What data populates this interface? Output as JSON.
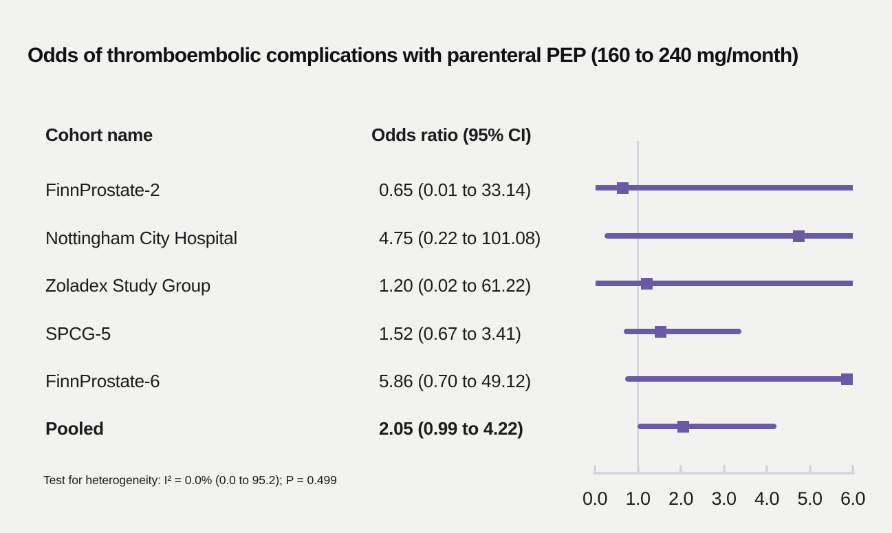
{
  "title": "Odds of thromboembolic complications with parenteral PEP (160 to 240 mg/month)",
  "columns": {
    "cohort": "Cohort name",
    "odds_ratio": "Odds ratio (95% CI)"
  },
  "footnote": "Test for heterogeneity: I² = 0.0% (0.0 to 95.2); P = 0.499",
  "colors": {
    "accent": "#6a5aa6",
    "axis": "#d3d8e0",
    "background": "#f2f2f1",
    "text": "#1b1b1b"
  },
  "chart_data": {
    "type": "forest",
    "title": "Odds of thromboembolic complications with parenteral PEP (160 to 240 mg/month)",
    "xlim": [
      0.0,
      6.0
    ],
    "reference_line": 1.0,
    "x_ticks": [
      0.0,
      1.0,
      2.0,
      3.0,
      4.0,
      5.0,
      6.0
    ],
    "x_tick_labels": [
      "0.0",
      "1.0",
      "2.0",
      "3.0",
      "4.0",
      "5.0",
      "6.0"
    ],
    "legend": "none",
    "grid": "off",
    "rows": [
      {
        "label": "FinnProstate-2",
        "or_text": "0.65 (0.01 to 33.14)",
        "or": 0.65,
        "ci_low": 0.01,
        "ci_high": 33.14,
        "bold": false
      },
      {
        "label": "Nottingham City Hospital",
        "or_text": "4.75 (0.22 to 101.08)",
        "or": 4.75,
        "ci_low": 0.22,
        "ci_high": 101.08,
        "bold": false
      },
      {
        "label": "Zoladex Study Group",
        "or_text": "1.20 (0.02 to 61.22)",
        "or": 1.2,
        "ci_low": 0.02,
        "ci_high": 61.22,
        "bold": false
      },
      {
        "label": "SPCG-5",
        "or_text": "1.52 (0.67 to 3.41)",
        "or": 1.52,
        "ci_low": 0.67,
        "ci_high": 3.41,
        "bold": false
      },
      {
        "label": "FinnProstate-6",
        "or_text": "5.86 (0.70 to 49.12)",
        "or": 5.86,
        "ci_low": 0.7,
        "ci_high": 49.12,
        "bold": false
      },
      {
        "label": "Pooled",
        "or_text": "2.05 (0.99 to 4.22)",
        "or": 2.05,
        "ci_low": 0.99,
        "ci_high": 4.22,
        "bold": true
      }
    ]
  }
}
